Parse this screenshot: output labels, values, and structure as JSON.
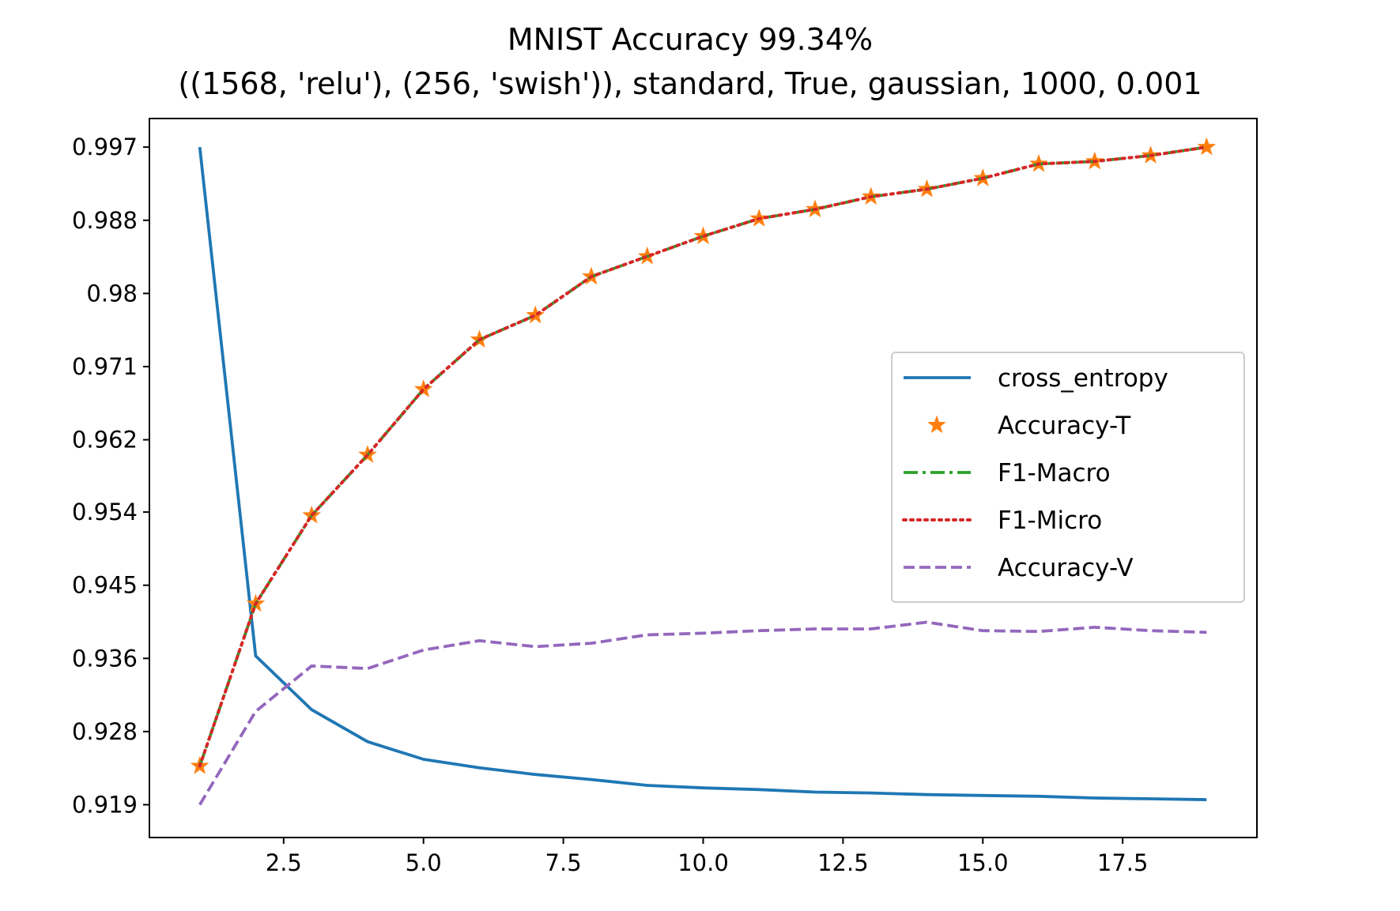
{
  "chart_data": {
    "type": "line",
    "title": "MNIST Accuracy 99.34%",
    "subtitle": "((1568, 'relu'), (256, 'swish')), standard, True, gaussian, 1000, 0.001",
    "xlabel": "",
    "ylabel": "",
    "grid": false,
    "legend_position": "center-right",
    "x": [
      1,
      2,
      3,
      4,
      5,
      6,
      7,
      8,
      9,
      10,
      11,
      12,
      13,
      14,
      15,
      16,
      17,
      18,
      19
    ],
    "xlim": [
      0.1,
      19.9
    ],
    "ylim": [
      0.9151,
      1.0006
    ],
    "x_ticks": [
      "2.5",
      "5.0",
      "7.5",
      "10.0",
      "12.5",
      "15.0",
      "17.5"
    ],
    "x_tick_values": [
      2.5,
      5.0,
      7.5,
      10.0,
      12.5,
      15.0,
      17.5
    ],
    "y_ticks": [
      "0.919",
      "0.928",
      "0.936",
      "0.945",
      "0.954",
      "0.962",
      "0.971",
      "0.98",
      "0.988",
      "0.997"
    ],
    "y_tick_values": [
      0.919,
      0.9277,
      0.9364,
      0.9451,
      0.9538,
      0.9624,
      0.9711,
      0.9798,
      0.9885,
      0.9972
    ],
    "series": [
      {
        "name": "cross_entropy",
        "style": "solid",
        "color": "#1f77b4",
        "values": [
          0.9972,
          0.9367,
          0.9303,
          0.9265,
          0.9244,
          0.9234,
          0.9226,
          0.922,
          0.9213,
          0.921,
          0.9208,
          0.9205,
          0.9204,
          0.9202,
          0.9201,
          0.92,
          0.9198,
          0.9197,
          0.9196
        ]
      },
      {
        "name": "Accuracy-T",
        "style": "star",
        "color": "#ff7f0e",
        "values": [
          0.9236,
          0.9429,
          0.9534,
          0.9606,
          0.9684,
          0.9743,
          0.9772,
          0.9818,
          0.9842,
          0.9866,
          0.9887,
          0.9898,
          0.9913,
          0.9922,
          0.9935,
          0.9952,
          0.9955,
          0.9962,
          0.9972
        ]
      },
      {
        "name": "F1-Macro",
        "style": "dashdot",
        "color": "#2ca02c",
        "values": [
          0.9236,
          0.9429,
          0.9534,
          0.9606,
          0.9684,
          0.9743,
          0.9772,
          0.9818,
          0.9842,
          0.9866,
          0.9887,
          0.9898,
          0.9913,
          0.9922,
          0.9935,
          0.9952,
          0.9955,
          0.9962,
          0.9972
        ]
      },
      {
        "name": "F1-Micro",
        "style": "dotted",
        "color": "#d62728",
        "values": [
          0.9236,
          0.9429,
          0.9534,
          0.9606,
          0.9684,
          0.9743,
          0.9772,
          0.9818,
          0.9842,
          0.9866,
          0.9887,
          0.9898,
          0.9913,
          0.9922,
          0.9935,
          0.9952,
          0.9955,
          0.9962,
          0.9972
        ]
      },
      {
        "name": "Accuracy-V",
        "style": "dashed",
        "color": "#9467bd",
        "values": [
          0.919,
          0.9301,
          0.9355,
          0.9352,
          0.9374,
          0.9385,
          0.9378,
          0.9382,
          0.9392,
          0.9394,
          0.9397,
          0.9399,
          0.9399,
          0.9407,
          0.9397,
          0.9396,
          0.9401,
          0.9397,
          0.9395
        ]
      }
    ]
  }
}
